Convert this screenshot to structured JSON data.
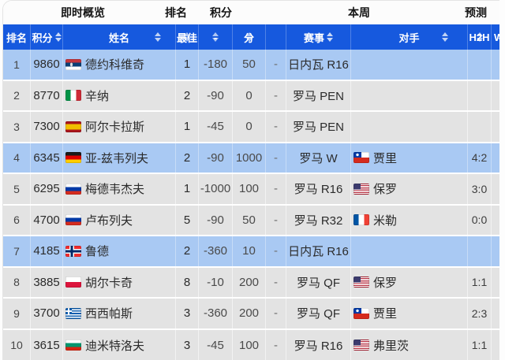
{
  "top": {
    "overview": "即时概览",
    "rank": "排名",
    "points": "积分",
    "week": "本周",
    "forecast": "预测"
  },
  "columns": [
    {
      "key": "rank",
      "label": "排名",
      "sort": "none"
    },
    {
      "key": "points",
      "label": "积分",
      "sort": "inline"
    },
    {
      "key": "name",
      "label": "姓名",
      "sort": "right"
    },
    {
      "key": "best",
      "label": "最佳",
      "sort": "behind"
    },
    {
      "key": "change",
      "label": "-",
      "sort": "behind"
    },
    {
      "key": "pts",
      "label": "分",
      "sort": "behind"
    },
    {
      "key": "dash",
      "label": "",
      "sort": "none"
    },
    {
      "key": "event",
      "label": "赛事",
      "sort": "inline"
    },
    {
      "key": "opponent",
      "label": "对手",
      "sort": "right"
    },
    {
      "key": "h2h",
      "label": "H2H",
      "sort": "behind"
    },
    {
      "key": "w",
      "label": "W",
      "sort": "behind"
    }
  ],
  "colors": {
    "header_bg": "#1659DE",
    "row_highlight": "#A9C9F3",
    "row_normal": "#E3E3E3",
    "header_text": "#FFFFFF",
    "sort_arrow": "#C9D9F7"
  },
  "flag_countries": {
    "rs": "serbia",
    "it": "italy",
    "es": "spain",
    "de": "germany",
    "ru": "russia",
    "no": "norway",
    "pl": "poland",
    "gr": "greece",
    "bg": "bulgaria",
    "cl": "chile",
    "us": "usa",
    "fr": "france"
  },
  "rows": [
    {
      "rank": "1",
      "points": "9860",
      "flag": "rs",
      "name": "德约科维奇",
      "best": "1",
      "change": "-180",
      "pts": "50",
      "dash": "-",
      "event": "日内瓦 R16",
      "opp_flag": "",
      "opponent": "",
      "h2h": "",
      "highlight": true
    },
    {
      "rank": "2",
      "points": "8770",
      "flag": "it",
      "name": "辛纳",
      "best": "2",
      "change": "-90",
      "pts": "0",
      "dash": "-",
      "event": "罗马 PEN",
      "opp_flag": "",
      "opponent": "",
      "h2h": "",
      "highlight": false
    },
    {
      "rank": "3",
      "points": "7300",
      "flag": "es",
      "name": "阿尔卡拉斯",
      "best": "1",
      "change": "-45",
      "pts": "0",
      "dash": "-",
      "event": "罗马 PEN",
      "opp_flag": "",
      "opponent": "",
      "h2h": "",
      "highlight": false
    },
    {
      "rank": "4",
      "points": "6345",
      "flag": "de",
      "name": "亚-兹韦列夫",
      "best": "2",
      "change": "-90",
      "pts": "1000",
      "dash": "-",
      "event": "罗马 W",
      "opp_flag": "cl",
      "opponent": "贾里",
      "h2h": "4:2",
      "highlight": true
    },
    {
      "rank": "5",
      "points": "6295",
      "flag": "ru",
      "name": "梅德韦杰夫",
      "best": "1",
      "change": "-1000",
      "pts": "100",
      "dash": "-",
      "event": "罗马 R16",
      "opp_flag": "us",
      "opponent": "保罗",
      "h2h": "3:0",
      "highlight": false
    },
    {
      "rank": "6",
      "points": "4700",
      "flag": "ru",
      "name": "卢布列夫",
      "best": "5",
      "change": "-90",
      "pts": "50",
      "dash": "-",
      "event": "罗马 R32",
      "opp_flag": "fr",
      "opponent": "米勒",
      "h2h": "0:0",
      "highlight": false
    },
    {
      "rank": "7",
      "points": "4185",
      "flag": "no",
      "name": "鲁德",
      "best": "2",
      "change": "-360",
      "pts": "10",
      "dash": "-",
      "event": "日内瓦 R16",
      "opp_flag": "",
      "opponent": "",
      "h2h": "",
      "highlight": true
    },
    {
      "rank": "8",
      "points": "3885",
      "flag": "pl",
      "name": "胡尔卡奇",
      "best": "8",
      "change": "-10",
      "pts": "200",
      "dash": "-",
      "event": "罗马 QF",
      "opp_flag": "us",
      "opponent": "保罗",
      "h2h": "1:1",
      "highlight": false
    },
    {
      "rank": "9",
      "points": "3700",
      "flag": "gr",
      "name": "西西帕斯",
      "best": "3",
      "change": "-360",
      "pts": "200",
      "dash": "-",
      "event": "罗马 QF",
      "opp_flag": "cl",
      "opponent": "贾里",
      "h2h": "2:3",
      "highlight": false
    },
    {
      "rank": "10",
      "points": "3615",
      "flag": "bg",
      "name": "迪米特洛夫",
      "best": "3",
      "change": "-45",
      "pts": "100",
      "dash": "-",
      "event": "罗马 R16",
      "opp_flag": "us",
      "opponent": "弗里茨",
      "h2h": "1:1",
      "highlight": false
    }
  ]
}
